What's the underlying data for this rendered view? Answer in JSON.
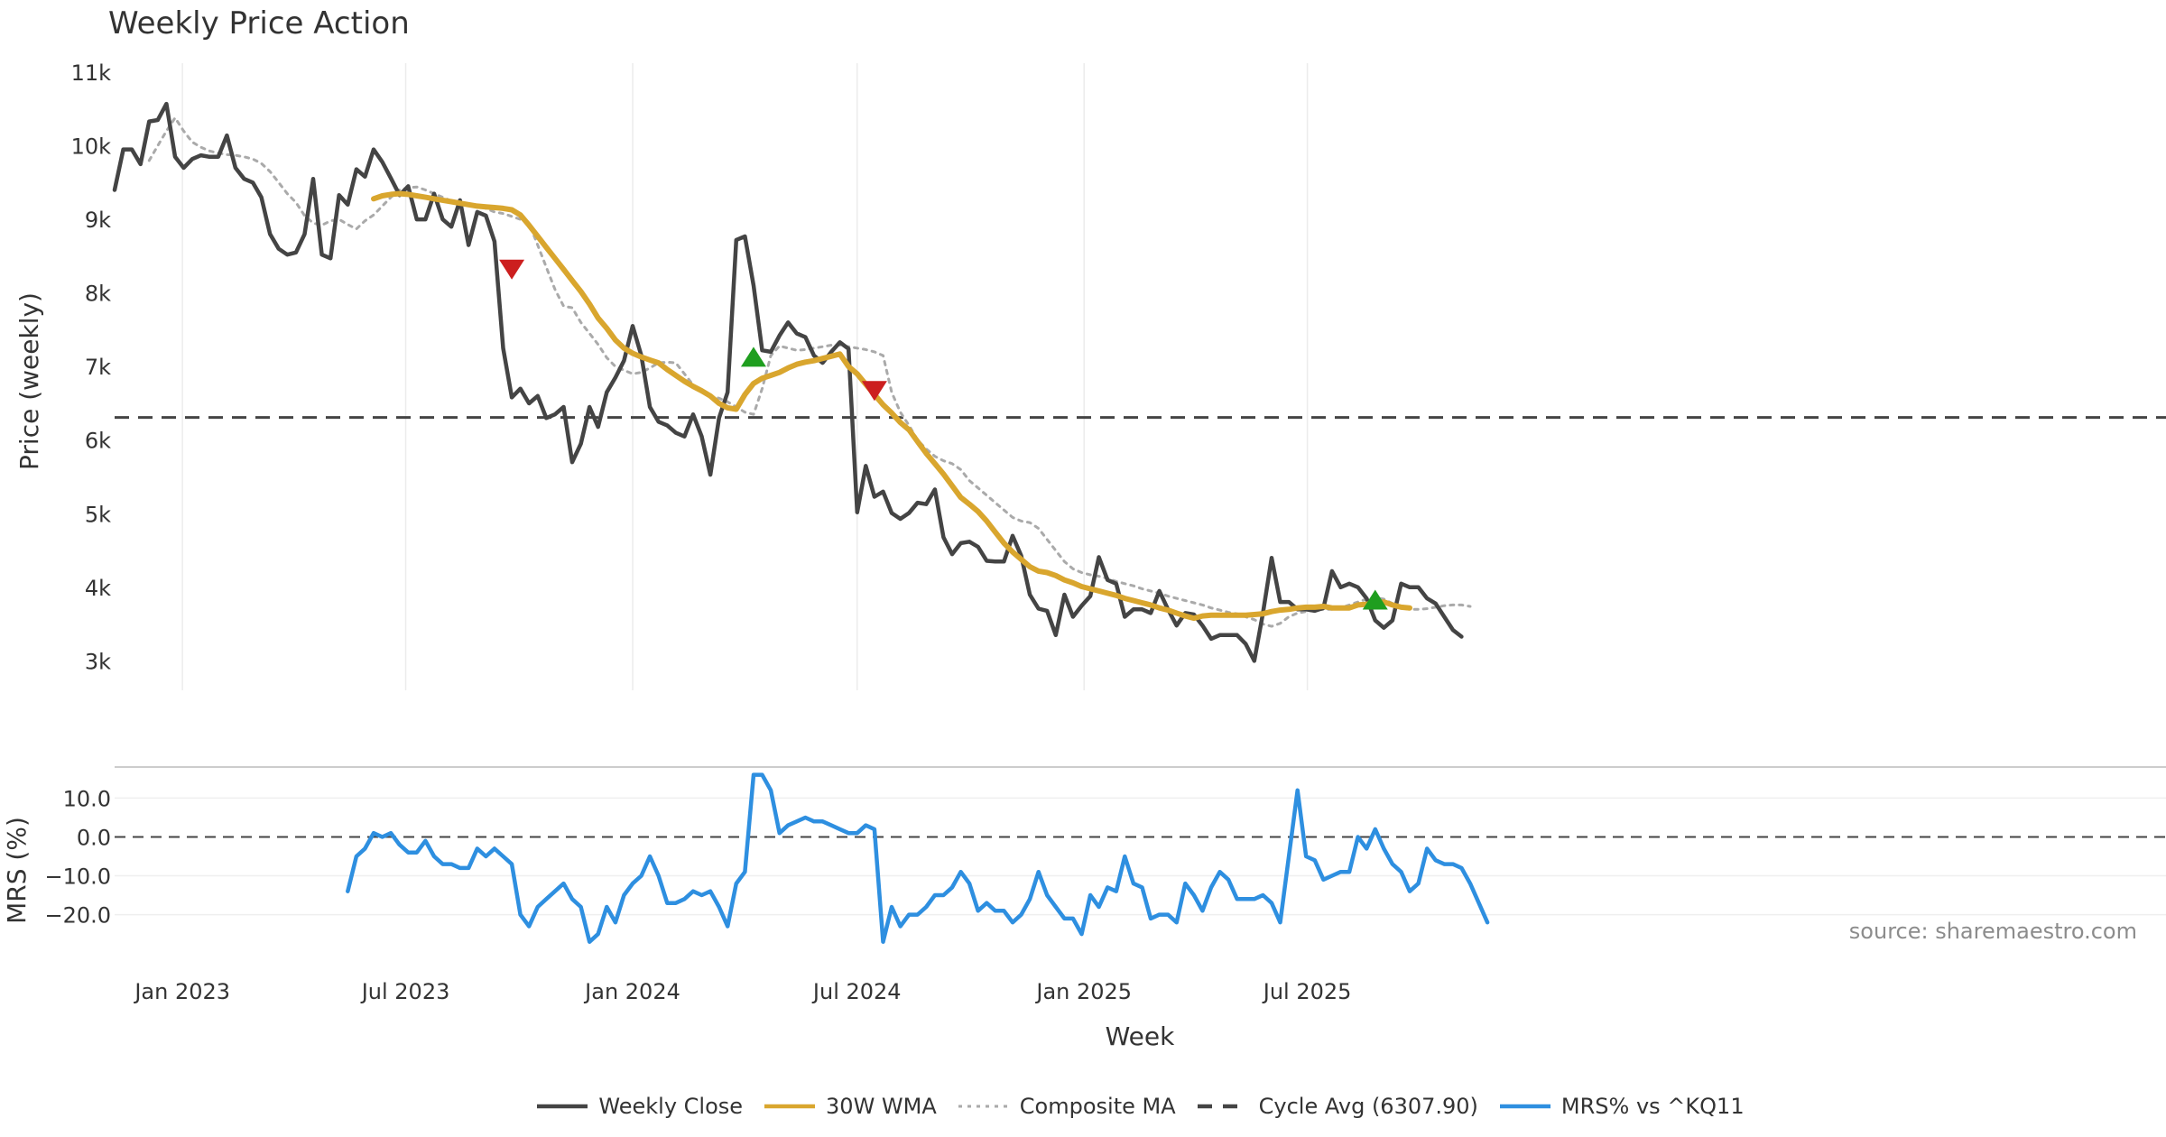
{
  "title": "Weekly Price Action",
  "source": "source: sharemaestro.com",
  "chart_data": {
    "type": "line",
    "title": "Weekly Price Action",
    "xlabel": "Week",
    "x_ticks": [
      "Jan 2023",
      "Jul 2023",
      "Jan 2024",
      "Jul 2024",
      "Jan 2025",
      "Jul 2025"
    ],
    "x_start": "2022-11-07",
    "week_count": 157,
    "grid": true,
    "legend_position": "bottom-center",
    "legend": [
      {
        "label": "Weekly Close",
        "color": "#444444",
        "style": "solid"
      },
      {
        "label": "30W WMA",
        "color": "#d9a62e",
        "style": "solid"
      },
      {
        "label": "Composite MA",
        "color": "#aaaaaa",
        "style": "dotted"
      },
      {
        "label": "Cycle Avg (6307.90)",
        "color": "#444444",
        "style": "dashed"
      },
      {
        "label": "MRS% vs ^KQ11",
        "color": "#2e8fe0",
        "style": "solid"
      }
    ],
    "price_panel": {
      "ylabel": "Price (weekly)",
      "ylim": [
        2600,
        11000
      ],
      "y_ticks": [
        3000,
        4000,
        5000,
        6000,
        7000,
        8000,
        9000,
        10000,
        11000
      ],
      "y_tick_labels": [
        "3k",
        "4k",
        "5k",
        "6k",
        "7k",
        "8k",
        "9k",
        "10k",
        "11k"
      ],
      "cycle_avg": 6307.9,
      "series": [
        {
          "name": "Weekly Close",
          "color": "#444444",
          "x_start_week": 0,
          "values": [
            9400,
            9950,
            9950,
            9750,
            10330,
            10350,
            10570,
            9850,
            9700,
            9820,
            9870,
            9850,
            9850,
            10140,
            9700,
            9550,
            9500,
            9300,
            8800,
            8600,
            8520,
            8550,
            8800,
            9550,
            8520,
            8470,
            9330,
            9200,
            9680,
            9580,
            9950,
            9780,
            9560,
            9330,
            9450,
            9000,
            9000,
            9350,
            9000,
            8900,
            9260,
            8650,
            9100,
            9050,
            8700,
            7250,
            6580,
            6700,
            6500,
            6600,
            6300,
            6350,
            6450,
            5700,
            5950,
            6450,
            6180,
            6650,
            6850,
            7080,
            7550,
            7150,
            6450,
            6250,
            6200,
            6100,
            6050,
            6350,
            6050,
            5530,
            6300,
            6650,
            8720,
            8770,
            8100,
            7220,
            7200,
            7420,
            7600,
            7450,
            7400,
            7150,
            7050,
            7200,
            7330,
            7240,
            5020,
            5650,
            5230,
            5300,
            5010,
            4930,
            5010,
            5150,
            5130,
            5330,
            4680,
            4450,
            4600,
            4620,
            4550,
            4360,
            4350,
            4350,
            4700,
            4430,
            3900,
            3710,
            3680,
            3350,
            3900,
            3600,
            3750,
            3880,
            4410,
            4100,
            4050,
            3600,
            3700,
            3700,
            3650,
            3950,
            3700,
            3480,
            3650,
            3630,
            3480,
            3300,
            3350,
            3350,
            3350,
            3230,
            3000,
            3650,
            4400,
            3800,
            3800,
            3700,
            3700,
            3680,
            3720,
            4220,
            4000,
            4050,
            4000,
            3850,
            3550,
            3450,
            3550,
            4050,
            4000,
            4000,
            3850,
            3780,
            3600,
            3420,
            3330
          ]
        },
        {
          "name": "30W WMA",
          "color": "#d9a62e",
          "x_start_week": 30,
          "values": [
            9280,
            9320,
            9340,
            9350,
            9340,
            9320,
            9300,
            9280,
            9260,
            9240,
            9220,
            9200,
            9180,
            9170,
            9160,
            9150,
            9130,
            9060,
            8920,
            8770,
            8620,
            8470,
            8320,
            8170,
            8020,
            7850,
            7660,
            7520,
            7360,
            7250,
            7180,
            7130,
            7090,
            7050,
            6960,
            6880,
            6800,
            6730,
            6670,
            6600,
            6500,
            6440,
            6420,
            6620,
            6770,
            6840,
            6880,
            6920,
            6980,
            7030,
            7060,
            7080,
            7110,
            7140,
            7170,
            7000,
            6900,
            6760,
            6620,
            6480,
            6370,
            6240,
            6140,
            5980,
            5820,
            5680,
            5540,
            5380,
            5220,
            5130,
            5030,
            4900,
            4750,
            4600,
            4480,
            4380,
            4280,
            4220,
            4200,
            4160,
            4100,
            4060,
            4010,
            3980,
            3950,
            3920,
            3890,
            3850,
            3820,
            3790,
            3760,
            3720,
            3690,
            3650,
            3610,
            3580,
            3610,
            3620,
            3620,
            3620,
            3620,
            3620,
            3630,
            3640,
            3670,
            3690,
            3700,
            3720,
            3730,
            3730,
            3740,
            3720,
            3720,
            3720,
            3760,
            3770,
            3790,
            3800,
            3760,
            3730,
            3720
          ]
        },
        {
          "name": "Composite MA",
          "color": "#aaaaaa",
          "x_start_week": 4,
          "values": [
            9800,
            10000,
            10200,
            10380,
            10200,
            10050,
            9980,
            9930,
            9900,
            9880,
            9870,
            9850,
            9820,
            9760,
            9650,
            9500,
            9350,
            9230,
            9050,
            8950,
            8920,
            8980,
            9000,
            8930,
            8870,
            8980,
            9060,
            9180,
            9300,
            9400,
            9430,
            9440,
            9400,
            9350,
            9300,
            9250,
            9220,
            9200,
            9180,
            9150,
            9100,
            9080,
            9040,
            9000,
            8950,
            8650,
            8350,
            8050,
            7820,
            7800,
            7600,
            7450,
            7300,
            7120,
            7000,
            6950,
            6900,
            6920,
            6980,
            7050,
            7060,
            7050,
            6900,
            6750,
            6650,
            6600,
            6570,
            6520,
            6450,
            6380,
            6350,
            6700,
            7150,
            7280,
            7250,
            7220,
            7230,
            7250,
            7270,
            7290,
            7290,
            7270,
            7250,
            7230,
            7200,
            7150,
            6650,
            6380,
            6200,
            6000,
            5880,
            5780,
            5720,
            5680,
            5600,
            5450,
            5350,
            5250,
            5150,
            5050,
            4950,
            4900,
            4880,
            4800,
            4650,
            4500,
            4350,
            4250,
            4200,
            4170,
            4150,
            4120,
            4080,
            4050,
            4020,
            3980,
            3950,
            3920,
            3880,
            3850,
            3820,
            3790,
            3760,
            3720,
            3690,
            3660,
            3640,
            3600,
            3560,
            3500,
            3470,
            3510,
            3600,
            3650,
            3670,
            3690,
            3700,
            3700,
            3720,
            3760,
            3800,
            3840,
            3860,
            3840,
            3780,
            3720,
            3700,
            3700,
            3710,
            3730,
            3750,
            3760,
            3760,
            3740
          ]
        }
      ],
      "markers": [
        {
          "type": "sell",
          "week": 46,
          "value": 8330,
          "color": "#cc1f1f"
        },
        {
          "type": "buy",
          "week": 74,
          "value": 7120,
          "color": "#1f9e1f"
        },
        {
          "type": "sell",
          "week": 88,
          "value": 6680,
          "color": "#cc1f1f"
        },
        {
          "type": "buy",
          "week": 146,
          "value": 3820,
          "color": "#1f9e1f"
        }
      ]
    },
    "mrs_panel": {
      "ylabel": "MRS (%)",
      "ylim": [
        -28,
        18
      ],
      "y_ticks": [
        10,
        0,
        -10,
        -20
      ],
      "y_tick_labels": [
        "10.0",
        "0.0",
        "−10.0",
        "−20.0"
      ],
      "series": [
        {
          "name": "MRS% vs ^KQ11",
          "color": "#2e8fe0",
          "x_start_week": 27,
          "values": [
            -14,
            -5,
            -3,
            1,
            0,
            1,
            -2,
            -4,
            -4,
            -1,
            -5,
            -7,
            -7,
            -8,
            -8,
            -3,
            -5,
            -3,
            -5,
            -7,
            -20,
            -23,
            -18,
            -16,
            -14,
            -12,
            -16,
            -18,
            -27,
            -25,
            -18,
            -22,
            -15,
            -12,
            -10,
            -5,
            -10,
            -17,
            -17,
            -16,
            -14,
            -15,
            -14,
            -18,
            -23,
            -12,
            -9,
            16,
            16,
            12,
            1,
            3,
            4,
            5,
            4,
            4,
            3,
            2,
            1,
            1,
            3,
            2,
            -27,
            -18,
            -23,
            -20,
            -20,
            -18,
            -15,
            -15,
            -13,
            -9,
            -12,
            -19,
            -17,
            -19,
            -19,
            -22,
            -20,
            -16,
            -9,
            -15,
            -18,
            -21,
            -21,
            -25,
            -15,
            -18,
            -13,
            -14,
            -5,
            -12,
            -13,
            -21,
            -20,
            -20,
            -22,
            -12,
            -15,
            -19,
            -13,
            -9,
            -11,
            -16,
            -16,
            -16,
            -15,
            -17,
            -22,
            -5,
            12,
            -5,
            -6,
            -11,
            -10,
            -9,
            -9,
            0,
            -3,
            2,
            -3,
            -7,
            -9,
            -14,
            -12,
            -3,
            -6,
            -7,
            -7,
            -8,
            -12,
            -17,
            -22
          ]
        }
      ]
    }
  }
}
